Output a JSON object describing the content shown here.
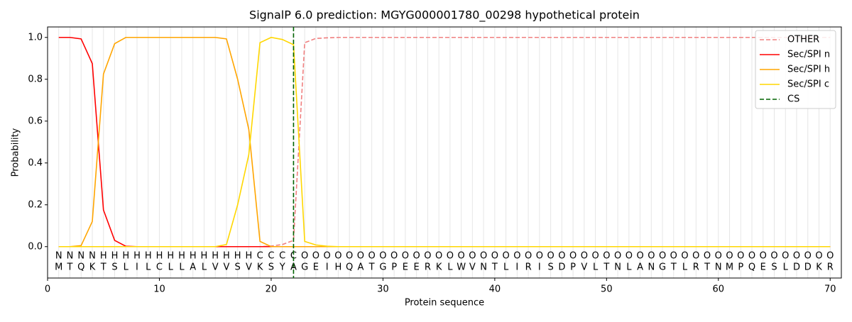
{
  "chart_data": {
    "type": "line",
    "title": "SignalP 6.0 prediction: MGYG000001780_00298 hypothetical protein",
    "x_label": "Protein sequence",
    "y_label": "Probability",
    "x": [
      1,
      2,
      3,
      4,
      5,
      6,
      7,
      8,
      9,
      10,
      11,
      12,
      13,
      14,
      15,
      16,
      17,
      18,
      19,
      20,
      21,
      22,
      23,
      24,
      25,
      26,
      27,
      28,
      29,
      30,
      31,
      32,
      33,
      34,
      35,
      36,
      37,
      38,
      39,
      40,
      41,
      42,
      43,
      44,
      45,
      46,
      47,
      48,
      49,
      50,
      51,
      52,
      53,
      54,
      55,
      56,
      57,
      58,
      59,
      60,
      61,
      62,
      63,
      64,
      65,
      66,
      67,
      68,
      69,
      70
    ],
    "sequence": [
      "M",
      "T",
      "Q",
      "K",
      "T",
      "S",
      "L",
      "I",
      "L",
      "C",
      "L",
      "L",
      "A",
      "L",
      "V",
      "V",
      "S",
      "V",
      "K",
      "S",
      "Y",
      "A",
      "G",
      "E",
      "I",
      "H",
      "Q",
      "A",
      "T",
      "G",
      "P",
      "E",
      "E",
      "R",
      "K",
      "L",
      "W",
      "V",
      "N",
      "T",
      "L",
      "I",
      "R",
      "I",
      "S",
      "D",
      "P",
      "V",
      "L",
      "T",
      "N",
      "L",
      "A",
      "N",
      "G",
      "T",
      "L",
      "R",
      "T",
      "N",
      "M",
      "P",
      "Q",
      "E",
      "S",
      "L",
      "D",
      "D",
      "K",
      "R"
    ],
    "region_labels": [
      "N",
      "N",
      "N",
      "N",
      "H",
      "H",
      "H",
      "H",
      "H",
      "H",
      "H",
      "H",
      "H",
      "H",
      "H",
      "H",
      "H",
      "H",
      "C",
      "C",
      "C",
      "C",
      "O",
      "O",
      "O",
      "O",
      "O",
      "O",
      "O",
      "O",
      "O",
      "O",
      "O",
      "O",
      "O",
      "O",
      "O",
      "O",
      "O",
      "O",
      "O",
      "O",
      "O",
      "O",
      "O",
      "O",
      "O",
      "O",
      "O",
      "O",
      "O",
      "O",
      "O",
      "O",
      "O",
      "O",
      "O",
      "O",
      "O",
      "O",
      "O",
      "O",
      "O",
      "O",
      "O",
      "O",
      "O",
      "O",
      "O",
      "O"
    ],
    "region_colors": {
      "N": "#ff0000",
      "H": "#ffa500",
      "C": "#ffd700",
      "O": "#808080"
    },
    "series": [
      {
        "name": "OTHER",
        "color": "#f08080",
        "dashed": true,
        "values": [
          0,
          0,
          0,
          0,
          0,
          0,
          0,
          0,
          0,
          0,
          0,
          0,
          0,
          0,
          0,
          0,
          0,
          0,
          0,
          0.003,
          0.01,
          0.03,
          0.975,
          0.995,
          0.998,
          1,
          1,
          1,
          1,
          1,
          1,
          1,
          1,
          1,
          1,
          1,
          1,
          1,
          1,
          1,
          1,
          1,
          1,
          1,
          1,
          1,
          1,
          1,
          1,
          1,
          1,
          1,
          1,
          1,
          1,
          1,
          1,
          1,
          1,
          1,
          1,
          1,
          1,
          1,
          1,
          1,
          1,
          1,
          1,
          1
        ]
      },
      {
        "name": "Sec/SPI n",
        "color": "#ff0000",
        "values": [
          1,
          1,
          0.993,
          0.875,
          0.175,
          0.03,
          0.002,
          0,
          0,
          0,
          0,
          0,
          0,
          0,
          0,
          0,
          0,
          0,
          0,
          0,
          0,
          0,
          0,
          0,
          0,
          0,
          0,
          0,
          0,
          0,
          0,
          0,
          0,
          0,
          0,
          0,
          0,
          0,
          0,
          0,
          0,
          0,
          0,
          0,
          0,
          0,
          0,
          0,
          0,
          0,
          0,
          0,
          0,
          0,
          0,
          0,
          0,
          0,
          0,
          0,
          0,
          0,
          0,
          0,
          0,
          0,
          0,
          0,
          0,
          0
        ]
      },
      {
        "name": "Sec/SPI h",
        "color": "#ffa500",
        "values": [
          0,
          0,
          0.005,
          0.12,
          0.825,
          0.97,
          1,
          1,
          1,
          1,
          1,
          1,
          1,
          1,
          1,
          0.993,
          0.8,
          0.56,
          0.025,
          0,
          0,
          0,
          0,
          0,
          0,
          0,
          0,
          0,
          0,
          0,
          0,
          0,
          0,
          0,
          0,
          0,
          0,
          0,
          0,
          0,
          0,
          0,
          0,
          0,
          0,
          0,
          0,
          0,
          0,
          0,
          0,
          0,
          0,
          0,
          0,
          0,
          0,
          0,
          0,
          0,
          0,
          0,
          0,
          0,
          0,
          0,
          0,
          0,
          0,
          0
        ]
      },
      {
        "name": "Sec/SPI c",
        "color": "#ffd700",
        "values": [
          0,
          0,
          0,
          0,
          0,
          0,
          0,
          0,
          0,
          0,
          0,
          0,
          0,
          0,
          0,
          0.01,
          0.2,
          0.44,
          0.975,
          1,
          0.99,
          0.965,
          0.025,
          0.008,
          0.002,
          0,
          0,
          0,
          0,
          0,
          0,
          0,
          0,
          0,
          0,
          0,
          0,
          0,
          0,
          0,
          0,
          0,
          0,
          0,
          0,
          0,
          0,
          0,
          0,
          0,
          0,
          0,
          0,
          0,
          0,
          0,
          0,
          0,
          0,
          0,
          0,
          0,
          0,
          0,
          0,
          0,
          0,
          0,
          0,
          0
        ]
      }
    ],
    "cs": {
      "name": "CS",
      "x": 22,
      "color": "#006400"
    },
    "xlim": [
      0,
      71
    ],
    "xticks": [
      0,
      10,
      20,
      30,
      40,
      50,
      60,
      70
    ],
    "ylim": [
      -0.15,
      1.05
    ],
    "yticks": [
      {
        "value": 0,
        "label": "0.0"
      },
      0.2,
      0.4,
      0.6,
      0.8,
      {
        "value": 1,
        "label": "1.0"
      }
    ],
    "legend": "upper right"
  }
}
